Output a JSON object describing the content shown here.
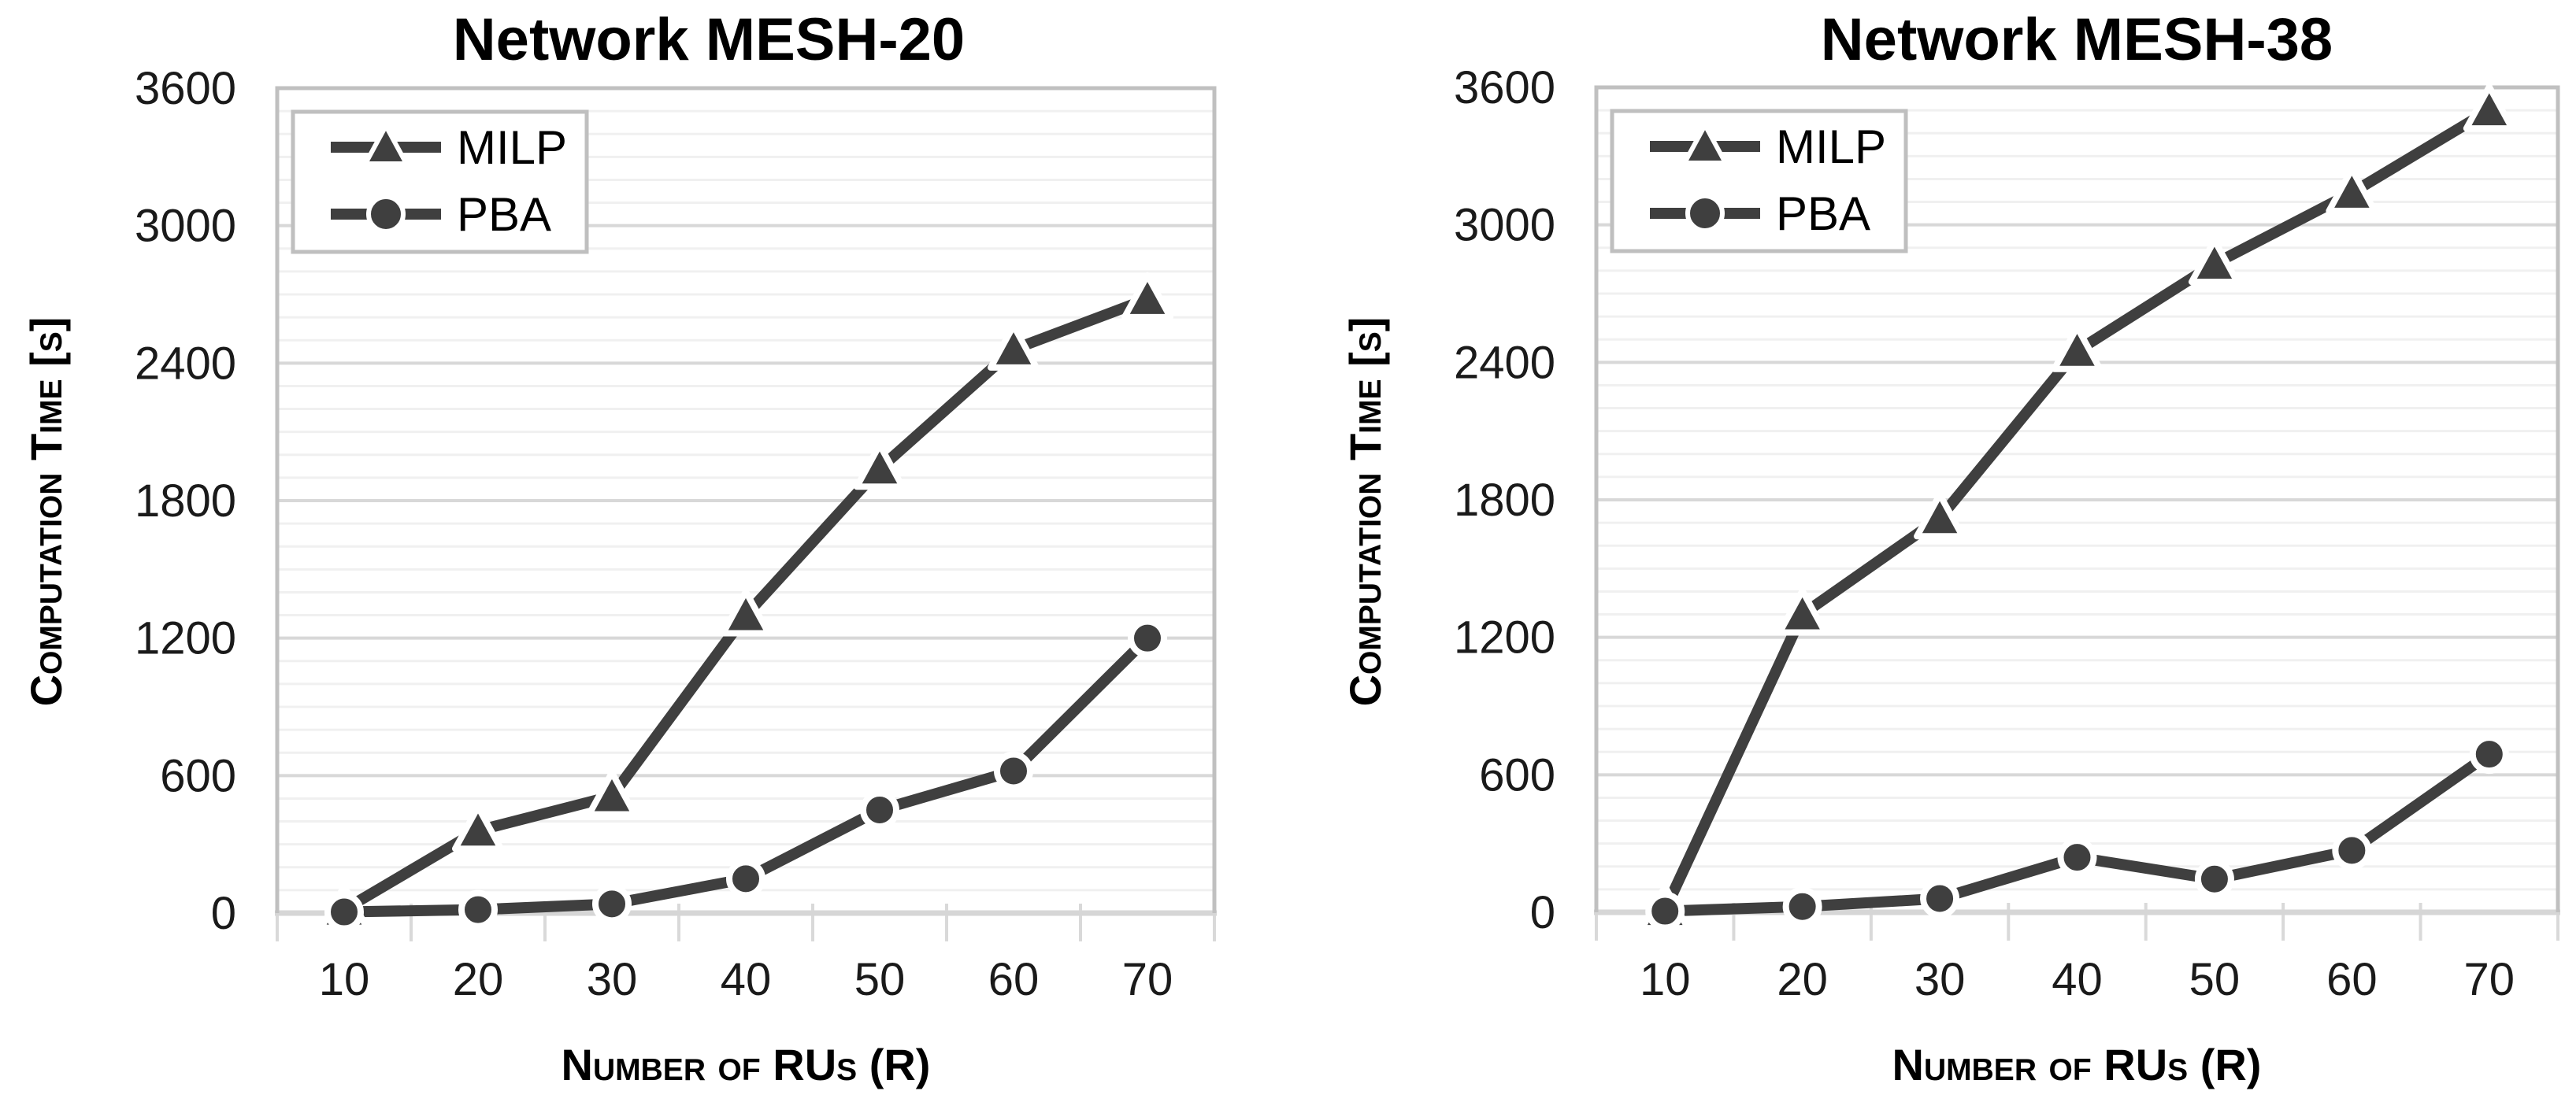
{
  "figure": {
    "description": "Two side-by-side line charts comparing MILP and PBA computation times"
  },
  "colors": {
    "series": "#3f3f3f",
    "marker_outline": "#ffffff",
    "minor_gridline": "#f0f0f0",
    "major_gridline": "#d8d8d8",
    "plot_border": "#c0c0c0",
    "axis_line": "#d6d6d6",
    "tick_mark": "#d9d9d9",
    "legend_border": "#bfbfbf",
    "legend_bg": "#ffffff",
    "title_text": "#000000",
    "tick_text": "#1a1a1a"
  },
  "legend": {
    "items": [
      {
        "label": "MILP",
        "marker": "triangle-marker-icon"
      },
      {
        "label": "PBA",
        "marker": "circle-marker-icon"
      }
    ]
  },
  "chart_data": [
    {
      "type": "line",
      "title": "Network MESH-20",
      "xlabel": "Number of RUs (R)",
      "ylabel": "Computation Time [s]",
      "x": [
        10,
        20,
        30,
        40,
        50,
        60,
        70
      ],
      "xticklabels": [
        "10",
        "20",
        "30",
        "40",
        "50",
        "60",
        "70"
      ],
      "yticks": [
        0,
        600,
        1200,
        1800,
        2400,
        3000,
        3600
      ],
      "ylim": [
        0,
        3600
      ],
      "major_grid_step": 600,
      "minor_grid_step": 100,
      "grid": true,
      "legend_position": "upper-left-inside",
      "series": [
        {
          "name": "MILP",
          "marker": "triangle",
          "values": [
            15,
            360,
            510,
            1300,
            1940,
            2460,
            2680
          ]
        },
        {
          "name": "PBA",
          "marker": "circle",
          "values": [
            5,
            15,
            40,
            150,
            450,
            620,
            1200
          ]
        }
      ]
    },
    {
      "type": "line",
      "title": "Network MESH-38",
      "xlabel": "Number of RUs (R)",
      "ylabel": "Computation Time [s]",
      "x": [
        10,
        20,
        30,
        40,
        50,
        60,
        70
      ],
      "xticklabels": [
        "10",
        "20",
        "30",
        "40",
        "50",
        "60",
        "70"
      ],
      "yticks": [
        0,
        600,
        1200,
        1800,
        2400,
        3000,
        3600
      ],
      "ylim": [
        0,
        3600
      ],
      "major_grid_step": 600,
      "minor_grid_step": 100,
      "grid": true,
      "legend_position": "upper-left-inside",
      "series": [
        {
          "name": "MILP",
          "marker": "triangle",
          "values": [
            10,
            1300,
            1720,
            2450,
            2830,
            3140,
            3500
          ]
        },
        {
          "name": "PBA",
          "marker": "circle",
          "values": [
            5,
            25,
            60,
            240,
            145,
            270,
            690
          ]
        }
      ]
    }
  ]
}
